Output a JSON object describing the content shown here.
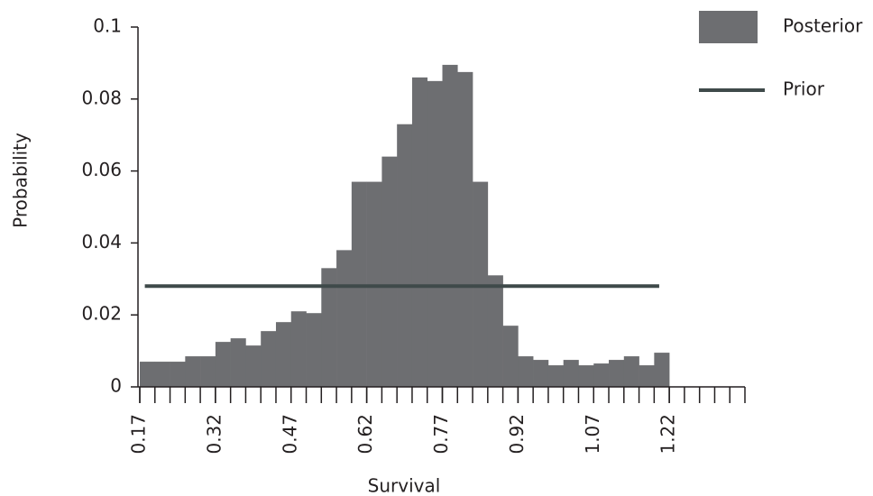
{
  "chart_data": {
    "type": "histogram",
    "x_label": "Survival",
    "y_label": "Probability",
    "xlim": [
      0.17,
      1.37
    ],
    "ylim": [
      0,
      0.1
    ],
    "xticks": [
      0.17,
      0.32,
      0.47,
      0.62,
      0.77,
      0.92,
      1.07,
      1.22
    ],
    "xminor_ticks": [
      0.17,
      0.2,
      0.23,
      0.26,
      0.29,
      0.32,
      0.35,
      0.38,
      0.41,
      0.44,
      0.47,
      0.5,
      0.53,
      0.56,
      0.59,
      0.62,
      0.65,
      0.68,
      0.71,
      0.74,
      0.77,
      0.8,
      0.83,
      0.86,
      0.89,
      0.92,
      0.95,
      0.98,
      1.01,
      1.04,
      1.07,
      1.1,
      1.13,
      1.16,
      1.19,
      1.22,
      1.25,
      1.28,
      1.31,
      1.34,
      1.37
    ],
    "yticks": [
      0,
      0.02,
      0.04,
      0.06,
      0.08,
      0.1
    ],
    "legend": "top-right",
    "series": [
      {
        "name": "Posterior",
        "type": "histogram",
        "color": "#6d6e71",
        "bins": [
          0.17,
          0.2,
          0.23,
          0.26,
          0.29,
          0.32,
          0.35,
          0.38,
          0.41,
          0.44,
          0.47,
          0.5,
          0.53,
          0.56,
          0.59,
          0.62,
          0.65,
          0.68,
          0.71,
          0.74,
          0.77,
          0.8,
          0.83,
          0.86,
          0.89,
          0.92,
          0.95,
          0.98,
          1.01,
          1.04,
          1.07,
          1.1,
          1.13,
          1.16,
          1.19,
          1.22
        ],
        "values": [
          0.007,
          0.007,
          0.007,
          0.0085,
          0.0085,
          0.0125,
          0.0135,
          0.0115,
          0.0155,
          0.018,
          0.021,
          0.0205,
          0.033,
          0.038,
          0.057,
          0.057,
          0.064,
          0.073,
          0.086,
          0.085,
          0.0895,
          0.0875,
          0.057,
          0.031,
          0.017,
          0.0085,
          0.0075,
          0.006,
          0.0075,
          0.006,
          0.0065,
          0.0075,
          0.0085,
          0.006,
          0.0095
        ]
      },
      {
        "name": "Prior",
        "type": "line",
        "color": "#3f4a4a",
        "x": [
          0.18,
          1.2
        ],
        "values": [
          0.028,
          0.028
        ]
      }
    ]
  }
}
